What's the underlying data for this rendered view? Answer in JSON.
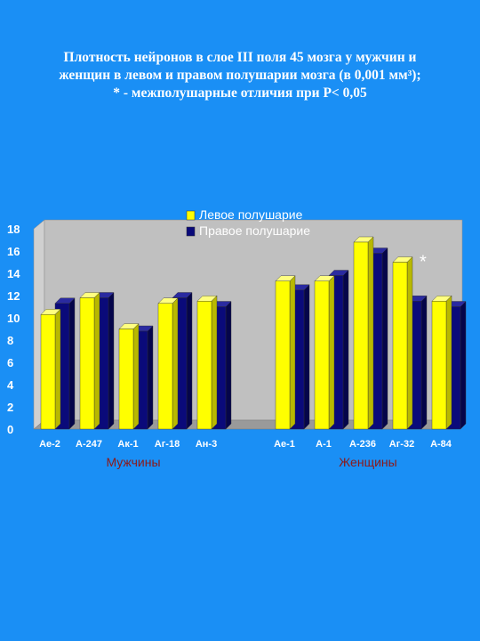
{
  "title": {
    "line1": "Плотность нейронов в слое III поля 45 мозга у мужчин и",
    "line2": "женщин в левом и правом полушарии мозга (в 0,001 мм³);",
    "line3": "* - межполушарные отличия при P< 0,05"
  },
  "colors": {
    "background": "#1a8ff5",
    "left_hemisphere": "#ffff00",
    "right_hemisphere": "#0a0a7a",
    "plot_wall": "#c0c0c0"
  },
  "chart_data": {
    "type": "bar",
    "categories": [
      "Ae-2",
      "A-247",
      "Ак-1",
      "Аг-18",
      "Ан-3",
      "Ae-1",
      "A-1",
      "A-236",
      "Аг-32",
      "A-84"
    ],
    "groups": [
      {
        "label": "Мужчины",
        "categories": [
          "Ae-2",
          "A-247",
          "Ак-1",
          "Аг-18",
          "Ан-3"
        ]
      },
      {
        "label": "Женщины",
        "categories": [
          "Ae-1",
          "A-1",
          "A-236",
          "Аг-32",
          "A-84"
        ]
      }
    ],
    "series": [
      {
        "name": "Левое полушарие",
        "color": "#ffff00",
        "values": [
          10.3,
          11.8,
          9.0,
          11.3,
          11.5,
          13.3,
          13.3,
          16.8,
          15.0,
          11.5
        ]
      },
      {
        "name": "Правое полушарие",
        "color": "#0a0a7a",
        "values": [
          11.3,
          11.8,
          8.8,
          11.8,
          11.0,
          12.5,
          13.8,
          15.8,
          11.5,
          11.0
        ]
      }
    ],
    "yticks": [
      "0",
      "2",
      "4",
      "6",
      "8",
      "10",
      "12",
      "14",
      "16",
      "18"
    ],
    "ylim": [
      0,
      18
    ],
    "legend_position": "top",
    "annotation": {
      "text": "*",
      "category": "Аг-32"
    },
    "grid": false
  }
}
